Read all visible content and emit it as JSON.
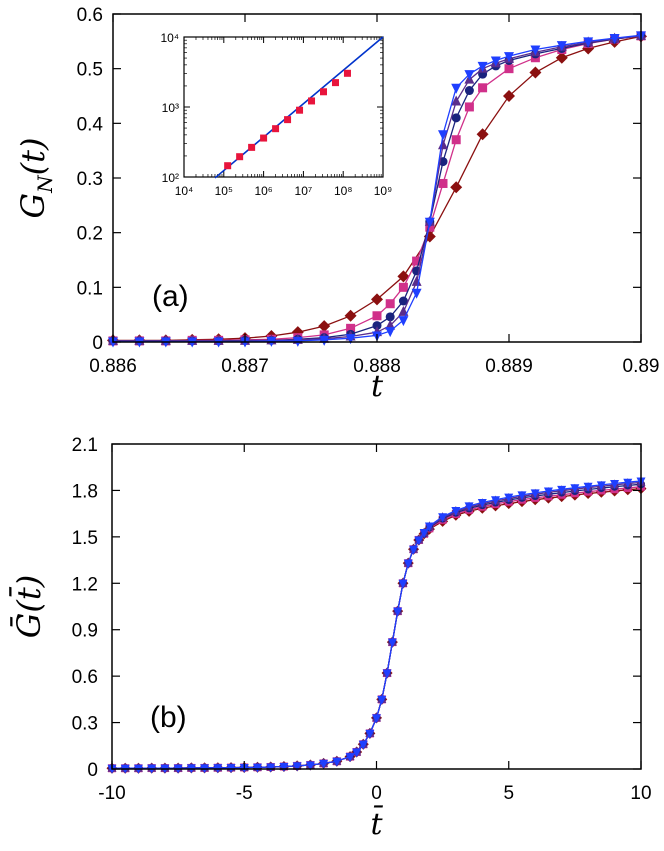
{
  "colors": {
    "N1": "#8b1010",
    "N2": "#d0308a",
    "N3": "#1a237e",
    "N4": "#5a2d8c",
    "N5": "#1f3fff",
    "fit": "#0033cc"
  },
  "chart_data": [
    {
      "panel": "(a)",
      "type": "line",
      "xlabel": "t",
      "ylabel": "G_N(t)",
      "xlim": [
        0.886,
        0.89
      ],
      "ylim": [
        0,
        0.6
      ],
      "xticks": [
        "0.886",
        "0.887",
        "0.888",
        "0.889",
        "0.89"
      ],
      "yticks": [
        "0",
        "0.1",
        "0.2",
        "0.3",
        "0.4",
        "0.5",
        "0.6"
      ],
      "series": [
        {
          "marker": "diamond",
          "color": "#8b1010",
          "x": [
            0.886,
            0.8862,
            0.8864,
            0.8866,
            0.8868,
            0.887,
            0.8872,
            0.8874,
            0.8876,
            0.8878,
            0.888,
            0.8882,
            0.8884,
            0.8886,
            0.8888,
            0.889,
            0.8892,
            0.8894,
            0.8896,
            0.8898,
            0.89
          ],
          "y": [
            0.003,
            0.003,
            0.003,
            0.004,
            0.005,
            0.007,
            0.011,
            0.018,
            0.029,
            0.048,
            0.078,
            0.12,
            0.193,
            0.283,
            0.38,
            0.45,
            0.493,
            0.52,
            0.537,
            0.549,
            0.559
          ]
        },
        {
          "marker": "square",
          "color": "#d0308a",
          "x": [
            0.886,
            0.8862,
            0.8864,
            0.8866,
            0.8868,
            0.887,
            0.8872,
            0.8874,
            0.8876,
            0.8878,
            0.888,
            0.8881,
            0.8882,
            0.8883,
            0.8884,
            0.8885,
            0.8886,
            0.8887,
            0.8888,
            0.889,
            0.8892,
            0.8894,
            0.8896,
            0.8898,
            0.89
          ],
          "y": [
            0.002,
            0.002,
            0.002,
            0.003,
            0.003,
            0.004,
            0.005,
            0.008,
            0.013,
            0.025,
            0.048,
            0.07,
            0.1,
            0.148,
            0.21,
            0.29,
            0.37,
            0.43,
            0.465,
            0.5,
            0.52,
            0.535,
            0.546,
            0.554,
            0.56
          ]
        },
        {
          "marker": "circle",
          "color": "#1a237e",
          "x": [
            0.886,
            0.8862,
            0.8864,
            0.8866,
            0.8868,
            0.887,
            0.8872,
            0.8874,
            0.8876,
            0.8878,
            0.888,
            0.8881,
            0.8882,
            0.8883,
            0.8884,
            0.8885,
            0.8886,
            0.8887,
            0.8888,
            0.8889,
            0.889,
            0.8892,
            0.8894,
            0.8896,
            0.8898,
            0.89
          ],
          "y": [
            0.002,
            0.002,
            0.002,
            0.002,
            0.002,
            0.003,
            0.003,
            0.005,
            0.008,
            0.014,
            0.03,
            0.046,
            0.075,
            0.13,
            0.22,
            0.33,
            0.41,
            0.46,
            0.49,
            0.505,
            0.515,
            0.527,
            0.537,
            0.547,
            0.554,
            0.56
          ]
        },
        {
          "marker": "triangle-up",
          "color": "#5a2d8c",
          "x": [
            0.886,
            0.8862,
            0.8864,
            0.8866,
            0.8868,
            0.887,
            0.8872,
            0.8874,
            0.8876,
            0.8878,
            0.888,
            0.8881,
            0.8882,
            0.8883,
            0.8884,
            0.8885,
            0.8886,
            0.8887,
            0.8888,
            0.8889,
            0.889,
            0.8892,
            0.8894,
            0.8896,
            0.8898,
            0.89
          ],
          "y": [
            0.002,
            0.002,
            0.002,
            0.002,
            0.002,
            0.002,
            0.003,
            0.004,
            0.006,
            0.01,
            0.018,
            0.03,
            0.055,
            0.11,
            0.22,
            0.36,
            0.44,
            0.48,
            0.5,
            0.51,
            0.518,
            0.53,
            0.54,
            0.548,
            0.555,
            0.56
          ]
        },
        {
          "marker": "triangle-down",
          "color": "#1f3fff",
          "x": [
            0.886,
            0.8862,
            0.8864,
            0.8866,
            0.8868,
            0.887,
            0.8872,
            0.8874,
            0.8876,
            0.8878,
            0.888,
            0.8881,
            0.8882,
            0.8883,
            0.8884,
            0.8885,
            0.8886,
            0.8887,
            0.8888,
            0.8889,
            0.889,
            0.8892,
            0.8894,
            0.8896,
            0.8898,
            0.89
          ],
          "y": [
            0.001,
            0.001,
            0.001,
            0.001,
            0.001,
            0.001,
            0.002,
            0.002,
            0.004,
            0.007,
            0.012,
            0.02,
            0.04,
            0.09,
            0.22,
            0.38,
            0.465,
            0.49,
            0.505,
            0.515,
            0.523,
            0.535,
            0.543,
            0.55,
            0.556,
            0.561
          ]
        }
      ],
      "inset": {
        "type": "scatter",
        "xscale": "log",
        "yscale": "log",
        "xlim": [
          10000,
          1000000000
        ],
        "ylim": [
          100,
          10000
        ],
        "xticks": [
          "10⁴",
          "10⁵",
          "10⁶",
          "10⁷",
          "10⁸",
          "10⁹"
        ],
        "yticks": [
          "10²",
          "10³",
          "10⁴"
        ],
        "x": [
          125000,
          250000,
          500000,
          1000000,
          2000000,
          4000000,
          8000000,
          16000000,
          32000000,
          64000000,
          128000000
        ],
        "y": [
          145,
          195,
          265,
          360,
          490,
          660,
          900,
          1220,
          1650,
          2230,
          3030
        ],
        "fit_x": [
          60000,
          1000000000
        ],
        "fit_y": [
          97,
          11000
        ]
      }
    },
    {
      "panel": "(b)",
      "type": "line",
      "xlabel": "t̄",
      "ylabel": "Ḡ(t̄)",
      "xlim": [
        -10,
        10
      ],
      "ylim": [
        0,
        2.1
      ],
      "xticks": [
        "-10",
        "-5",
        "0",
        "5",
        "10"
      ],
      "yticks": [
        "0",
        "0.3",
        "0.6",
        "0.9",
        "1.2",
        "1.5",
        "1.8",
        "2.1"
      ],
      "x": [
        -10,
        -9.5,
        -9,
        -8.5,
        -8,
        -7.5,
        -7,
        -6.5,
        -6,
        -5.5,
        -5,
        -4.5,
        -4,
        -3.5,
        -3,
        -2.5,
        -2,
        -1.5,
        -1,
        -0.75,
        -0.5,
        -0.25,
        0,
        0.2,
        0.4,
        0.6,
        0.8,
        1,
        1.2,
        1.4,
        1.6,
        1.8,
        2,
        2.5,
        3,
        3.5,
        4,
        4.5,
        5,
        5.5,
        6,
        6.5,
        7,
        7.5,
        8,
        8.5,
        9,
        9.5,
        10
      ],
      "series": [
        {
          "marker": "diamond",
          "color": "#8b1010",
          "y": [
            0.005,
            0.005,
            0.005,
            0.006,
            0.006,
            0.006,
            0.007,
            0.007,
            0.008,
            0.009,
            0.01,
            0.011,
            0.013,
            0.016,
            0.02,
            0.026,
            0.036,
            0.05,
            0.08,
            0.11,
            0.16,
            0.23,
            0.33,
            0.45,
            0.62,
            0.82,
            1.02,
            1.2,
            1.33,
            1.42,
            1.48,
            1.52,
            1.55,
            1.6,
            1.64,
            1.665,
            1.685,
            1.7,
            1.715,
            1.728,
            1.74,
            1.75,
            1.76,
            1.77,
            1.78,
            1.788,
            1.796,
            1.804,
            1.812
          ]
        },
        {
          "marker": "square",
          "color": "#d0308a",
          "y": [
            0.005,
            0.005,
            0.005,
            0.006,
            0.006,
            0.006,
            0.007,
            0.007,
            0.008,
            0.009,
            0.01,
            0.011,
            0.013,
            0.016,
            0.02,
            0.026,
            0.036,
            0.05,
            0.08,
            0.11,
            0.16,
            0.23,
            0.33,
            0.45,
            0.62,
            0.82,
            1.02,
            1.2,
            1.33,
            1.42,
            1.48,
            1.52,
            1.555,
            1.61,
            1.648,
            1.675,
            1.695,
            1.712,
            1.727,
            1.74,
            1.752,
            1.762,
            1.772,
            1.782,
            1.792,
            1.8,
            1.808,
            1.816,
            1.824
          ]
        },
        {
          "marker": "circle",
          "color": "#1a237e",
          "y": [
            0.005,
            0.005,
            0.005,
            0.006,
            0.006,
            0.006,
            0.007,
            0.007,
            0.008,
            0.009,
            0.01,
            0.011,
            0.013,
            0.016,
            0.02,
            0.026,
            0.036,
            0.05,
            0.08,
            0.11,
            0.16,
            0.23,
            0.33,
            0.45,
            0.62,
            0.82,
            1.02,
            1.2,
            1.33,
            1.42,
            1.48,
            1.52,
            1.56,
            1.618,
            1.656,
            1.684,
            1.705,
            1.722,
            1.738,
            1.752,
            1.764,
            1.775,
            1.786,
            1.796,
            1.806,
            1.815,
            1.824,
            1.832,
            1.84
          ]
        },
        {
          "marker": "triangle-up",
          "color": "#5a2d8c",
          "y": [
            0.005,
            0.005,
            0.005,
            0.006,
            0.006,
            0.006,
            0.007,
            0.007,
            0.008,
            0.009,
            0.01,
            0.011,
            0.013,
            0.016,
            0.02,
            0.026,
            0.036,
            0.05,
            0.08,
            0.11,
            0.16,
            0.23,
            0.33,
            0.45,
            0.62,
            0.82,
            1.02,
            1.2,
            1.33,
            1.42,
            1.48,
            1.525,
            1.565,
            1.624,
            1.664,
            1.692,
            1.714,
            1.732,
            1.748,
            1.762,
            1.775,
            1.787,
            1.798,
            1.808,
            1.818,
            1.827,
            1.836,
            1.844,
            1.852
          ]
        },
        {
          "marker": "triangle-down",
          "color": "#1f3fff",
          "y": [
            0.005,
            0.005,
            0.005,
            0.006,
            0.006,
            0.006,
            0.007,
            0.007,
            0.008,
            0.009,
            0.01,
            0.011,
            0.013,
            0.016,
            0.02,
            0.026,
            0.036,
            0.05,
            0.08,
            0.11,
            0.16,
            0.23,
            0.33,
            0.45,
            0.62,
            0.82,
            1.02,
            1.2,
            1.33,
            1.42,
            1.48,
            1.528,
            1.57,
            1.63,
            1.67,
            1.7,
            1.722,
            1.74,
            1.757,
            1.771,
            1.784,
            1.796,
            1.807,
            1.817,
            1.827,
            1.836,
            1.845,
            1.853,
            1.861
          ]
        }
      ]
    }
  ]
}
